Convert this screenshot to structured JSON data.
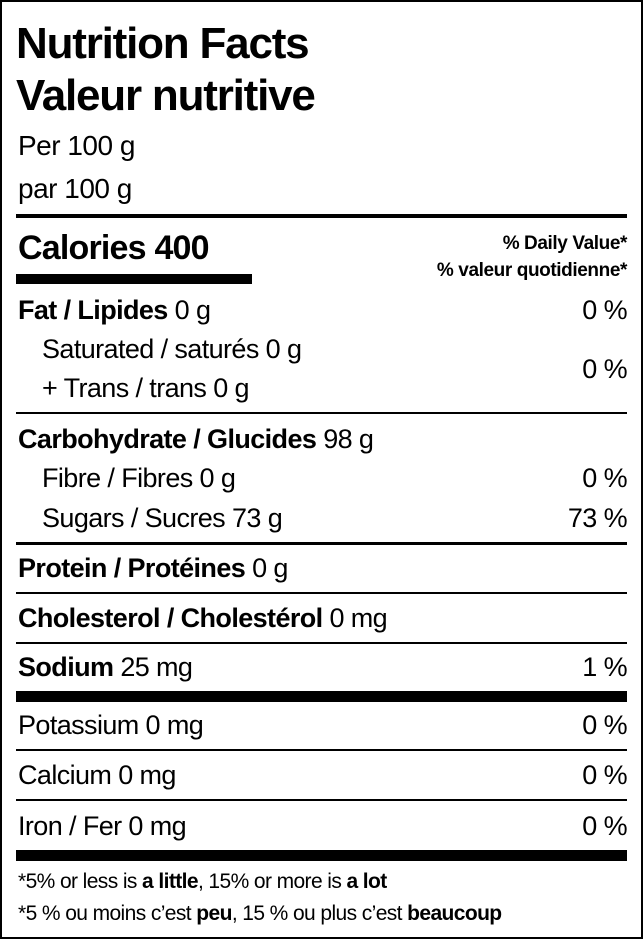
{
  "title_en": "Nutrition Facts",
  "title_fr": "Valeur nutritive",
  "serving_en": "Per 100 g",
  "serving_fr": "par 100 g",
  "calories": {
    "label": "Calories",
    "value": "400"
  },
  "daily_value_en": "% Daily Value*",
  "daily_value_fr": "% valeur quotidienne*",
  "rows": {
    "fat": {
      "name": "Fat / Lipides",
      "amount": "0 g",
      "dv": "0 %"
    },
    "saturated": {
      "name": "Saturated / saturés 0 g"
    },
    "trans": {
      "name": "+ Trans / trans 0 g",
      "dv": "0 %"
    },
    "carbohydrate": {
      "name": "Carbohydrate / Glucides",
      "amount": "98 g"
    },
    "fibre": {
      "name": "Fibre / Fibres 0 g",
      "dv": "0 %"
    },
    "sugars": {
      "name": "Sugars / Sucres 73 g",
      "dv": "73 %"
    },
    "protein": {
      "name": "Protein / Protéines",
      "amount": "0 g"
    },
    "cholesterol": {
      "name": "Cholesterol / Cholestérol",
      "amount": "0 mg"
    },
    "sodium": {
      "name": "Sodium",
      "amount": "25 mg",
      "dv": "1 %"
    },
    "potassium": {
      "name": "Potassium 0 mg",
      "dv": "0 %"
    },
    "calcium": {
      "name": "Calcium 0 mg",
      "dv": "0 %"
    },
    "iron": {
      "name": "Iron / Fer 0 mg",
      "dv": "0 %"
    }
  },
  "footnote_en": {
    "a": "*5% or less is ",
    "b": "a little",
    "c": ", 15% or more is ",
    "d": "a lot"
  },
  "footnote_fr": {
    "a": "*5 % ou moins c’est ",
    "b": "peu",
    "c": ", 15 % ou plus c’est ",
    "d": "beaucoup"
  }
}
